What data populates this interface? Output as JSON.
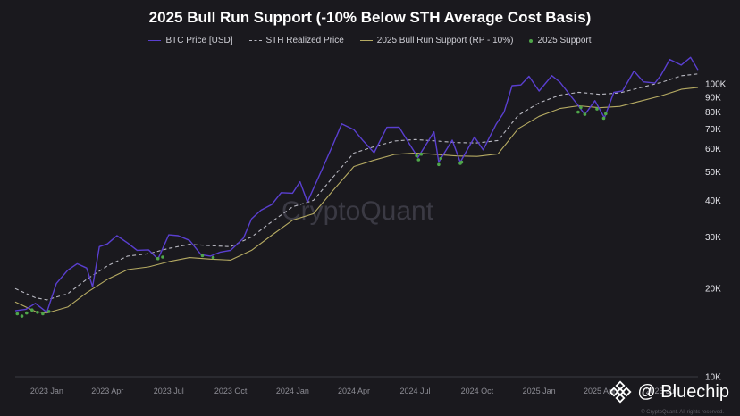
{
  "colors": {
    "background": "#1a191e",
    "btc": "#5a3fd0",
    "sth": "#b9b9c2",
    "support": "#b6ab63",
    "marker": "#4fa64a",
    "watermark": "#3b3a44"
  },
  "watermark": "CryptoQuant",
  "brand": {
    "label": "@ Bluechip",
    "icon": "binance-diamond-icon"
  },
  "copyright": "© CryptoQuant. All rights reserved.",
  "chart_data": {
    "type": "line",
    "title": "2025 Bull Run Support (-10% Below STH Average Cost Basis)",
    "xlabel": "",
    "ylabel": "",
    "y_scale": "log",
    "ylim": [
      10000,
      125000
    ],
    "xlim": [
      "2022-11-15",
      "2025-08-25"
    ],
    "grid": false,
    "legend_position": "top-center",
    "x_ticks": [
      {
        "date": "2023-01-01",
        "label": "2023 Jan"
      },
      {
        "date": "2023-04-01",
        "label": "2023 Apr"
      },
      {
        "date": "2023-07-01",
        "label": "2023 Jul"
      },
      {
        "date": "2023-10-01",
        "label": "2023 Oct"
      },
      {
        "date": "2024-01-01",
        "label": "2024 Jan"
      },
      {
        "date": "2024-04-01",
        "label": "2024 Apr"
      },
      {
        "date": "2024-07-01",
        "label": "2024 Jul"
      },
      {
        "date": "2024-10-01",
        "label": "2024 Oct"
      },
      {
        "date": "2025-01-01",
        "label": "2025 Jan"
      },
      {
        "date": "2025-04-01",
        "label": "2025 Apr"
      },
      {
        "date": "2025-07-01",
        "label": "2025 Jul"
      }
    ],
    "y_ticks": [
      {
        "value": 10000,
        "label": "10K"
      },
      {
        "value": 20000,
        "label": "20K"
      },
      {
        "value": 30000,
        "label": "30K"
      },
      {
        "value": 40000,
        "label": "40K"
      },
      {
        "value": 50000,
        "label": "50K"
      },
      {
        "value": 60000,
        "label": "60K"
      },
      {
        "value": 70000,
        "label": "70K"
      },
      {
        "value": 80000,
        "label": "80K"
      },
      {
        "value": 90000,
        "label": "90K"
      },
      {
        "value": 100000,
        "label": "100K"
      }
    ],
    "series": [
      {
        "name": "BTC Price [USD]",
        "style": "solid",
        "points": [
          [
            "2022-11-15",
            16800
          ],
          [
            "2022-12-01",
            17000
          ],
          [
            "2022-12-15",
            17800
          ],
          [
            "2023-01-01",
            16600
          ],
          [
            "2023-01-15",
            20800
          ],
          [
            "2023-02-01",
            23100
          ],
          [
            "2023-02-15",
            24300
          ],
          [
            "2023-03-01",
            23500
          ],
          [
            "2023-03-10",
            20300
          ],
          [
            "2023-03-20",
            27800
          ],
          [
            "2023-04-01",
            28400
          ],
          [
            "2023-04-15",
            30300
          ],
          [
            "2023-05-01",
            28600
          ],
          [
            "2023-05-15",
            27000
          ],
          [
            "2023-06-01",
            27100
          ],
          [
            "2023-06-15",
            25200
          ],
          [
            "2023-07-01",
            30500
          ],
          [
            "2023-07-15",
            30300
          ],
          [
            "2023-08-01",
            29200
          ],
          [
            "2023-08-18",
            26100
          ],
          [
            "2023-09-01",
            25800
          ],
          [
            "2023-09-15",
            26600
          ],
          [
            "2023-10-01",
            27000
          ],
          [
            "2023-10-20",
            29700
          ],
          [
            "2023-11-01",
            34600
          ],
          [
            "2023-11-15",
            37000
          ],
          [
            "2023-12-01",
            38700
          ],
          [
            "2023-12-15",
            42500
          ],
          [
            "2024-01-01",
            42300
          ],
          [
            "2024-01-12",
            46300
          ],
          [
            "2024-01-23",
            39500
          ],
          [
            "2024-02-15",
            51800
          ],
          [
            "2024-03-01",
            62000
          ],
          [
            "2024-03-14",
            73000
          ],
          [
            "2024-04-01",
            69700
          ],
          [
            "2024-04-15",
            63800
          ],
          [
            "2024-05-01",
            58200
          ],
          [
            "2024-05-20",
            71000
          ],
          [
            "2024-06-07",
            71100
          ],
          [
            "2024-06-25",
            61000
          ],
          [
            "2024-07-05",
            56000
          ],
          [
            "2024-07-29",
            68500
          ],
          [
            "2024-08-05",
            54000
          ],
          [
            "2024-08-25",
            64200
          ],
          [
            "2024-09-06",
            54000
          ],
          [
            "2024-09-27",
            65800
          ],
          [
            "2024-10-10",
            59500
          ],
          [
            "2024-10-29",
            72600
          ],
          [
            "2024-11-10",
            80000
          ],
          [
            "2024-11-22",
            98500
          ],
          [
            "2024-12-05",
            99000
          ],
          [
            "2024-12-17",
            106000
          ],
          [
            "2025-01-01",
            94400
          ],
          [
            "2025-01-20",
            106500
          ],
          [
            "2025-02-01",
            101300
          ],
          [
            "2025-02-28",
            84300
          ],
          [
            "2025-03-10",
            78500
          ],
          [
            "2025-03-25",
            87500
          ],
          [
            "2025-04-08",
            76500
          ],
          [
            "2025-04-22",
            93400
          ],
          [
            "2025-05-05",
            94500
          ],
          [
            "2025-05-22",
            110500
          ],
          [
            "2025-06-05",
            101500
          ],
          [
            "2025-06-22",
            100500
          ],
          [
            "2025-07-01",
            107000
          ],
          [
            "2025-07-14",
            121000
          ],
          [
            "2025-07-31",
            115800
          ],
          [
            "2025-08-14",
            123000
          ],
          [
            "2025-08-25",
            111500
          ]
        ]
      },
      {
        "name": "STH Realized Price",
        "style": "dashed",
        "points": [
          [
            "2022-11-15",
            20000
          ],
          [
            "2022-12-15",
            18600
          ],
          [
            "2023-01-01",
            18300
          ],
          [
            "2023-02-01",
            19200
          ],
          [
            "2023-03-01",
            21500
          ],
          [
            "2023-04-01",
            23900
          ],
          [
            "2023-05-01",
            25800
          ],
          [
            "2023-06-01",
            26300
          ],
          [
            "2023-07-01",
            27400
          ],
          [
            "2023-08-01",
            28300
          ],
          [
            "2023-09-01",
            28000
          ],
          [
            "2023-10-01",
            27800
          ],
          [
            "2023-11-01",
            30000
          ],
          [
            "2023-12-01",
            33800
          ],
          [
            "2024-01-01",
            38000
          ],
          [
            "2024-02-01",
            40000
          ],
          [
            "2024-03-01",
            48000
          ],
          [
            "2024-04-01",
            58000
          ],
          [
            "2024-05-01",
            61000
          ],
          [
            "2024-06-01",
            63800
          ],
          [
            "2024-07-01",
            64500
          ],
          [
            "2024-08-01",
            63800
          ],
          [
            "2024-09-01",
            63000
          ],
          [
            "2024-10-01",
            62800
          ],
          [
            "2024-11-01",
            64000
          ],
          [
            "2024-12-01",
            78000
          ],
          [
            "2025-01-01",
            86000
          ],
          [
            "2025-02-01",
            91500
          ],
          [
            "2025-03-01",
            93500
          ],
          [
            "2025-04-01",
            92000
          ],
          [
            "2025-05-01",
            93000
          ],
          [
            "2025-06-01",
            97000
          ],
          [
            "2025-07-01",
            101000
          ],
          [
            "2025-08-01",
            106500
          ],
          [
            "2025-08-25",
            108000
          ]
        ]
      },
      {
        "name": "2025 Bull Run Support (RP - 10%)",
        "style": "solid",
        "points": [
          [
            "2022-11-15",
            18000
          ],
          [
            "2022-12-15",
            16700
          ],
          [
            "2023-01-01",
            16500
          ],
          [
            "2023-02-01",
            17300
          ],
          [
            "2023-03-01",
            19350
          ],
          [
            "2023-04-01",
            21500
          ],
          [
            "2023-05-01",
            23200
          ],
          [
            "2023-06-01",
            23700
          ],
          [
            "2023-07-01",
            24700
          ],
          [
            "2023-08-01",
            25500
          ],
          [
            "2023-09-01",
            25200
          ],
          [
            "2023-10-01",
            25000
          ],
          [
            "2023-11-01",
            27000
          ],
          [
            "2023-12-01",
            30400
          ],
          [
            "2024-01-01",
            34200
          ],
          [
            "2024-02-01",
            36000
          ],
          [
            "2024-03-01",
            43200
          ],
          [
            "2024-04-01",
            52200
          ],
          [
            "2024-05-01",
            54900
          ],
          [
            "2024-06-01",
            57400
          ],
          [
            "2024-07-01",
            58000
          ],
          [
            "2024-08-01",
            57400
          ],
          [
            "2024-09-01",
            56700
          ],
          [
            "2024-10-01",
            56500
          ],
          [
            "2024-11-01",
            57600
          ],
          [
            "2024-12-01",
            70200
          ],
          [
            "2025-01-01",
            77400
          ],
          [
            "2025-02-01",
            82300
          ],
          [
            "2025-03-01",
            84100
          ],
          [
            "2025-04-01",
            82800
          ],
          [
            "2025-05-01",
            83700
          ],
          [
            "2025-06-01",
            87300
          ],
          [
            "2025-07-01",
            90900
          ],
          [
            "2025-08-01",
            95800
          ],
          [
            "2025-08-25",
            97200
          ]
        ]
      },
      {
        "name": "2025 Support",
        "style": "marker",
        "points": [
          [
            "2022-11-18",
            16400
          ],
          [
            "2022-11-25",
            16100
          ],
          [
            "2022-12-02",
            16500
          ],
          [
            "2022-12-10",
            16900
          ],
          [
            "2022-12-18",
            16600
          ],
          [
            "2022-12-26",
            16400
          ],
          [
            "2023-01-04",
            16700
          ],
          [
            "2023-06-15",
            25300
          ],
          [
            "2023-06-22",
            25600
          ],
          [
            "2023-08-20",
            25900
          ],
          [
            "2023-09-05",
            25500
          ],
          [
            "2024-07-03",
            56800
          ],
          [
            "2024-07-06",
            55000
          ],
          [
            "2024-07-10",
            57500
          ],
          [
            "2024-08-05",
            53000
          ],
          [
            "2024-08-08",
            55600
          ],
          [
            "2024-09-06",
            53500
          ],
          [
            "2024-09-08",
            54000
          ],
          [
            "2025-02-28",
            80000
          ],
          [
            "2025-03-04",
            83000
          ],
          [
            "2025-03-10",
            78600
          ],
          [
            "2025-03-28",
            82000
          ],
          [
            "2025-04-07",
            76200
          ],
          [
            "2025-04-10",
            79000
          ]
        ]
      }
    ]
  }
}
